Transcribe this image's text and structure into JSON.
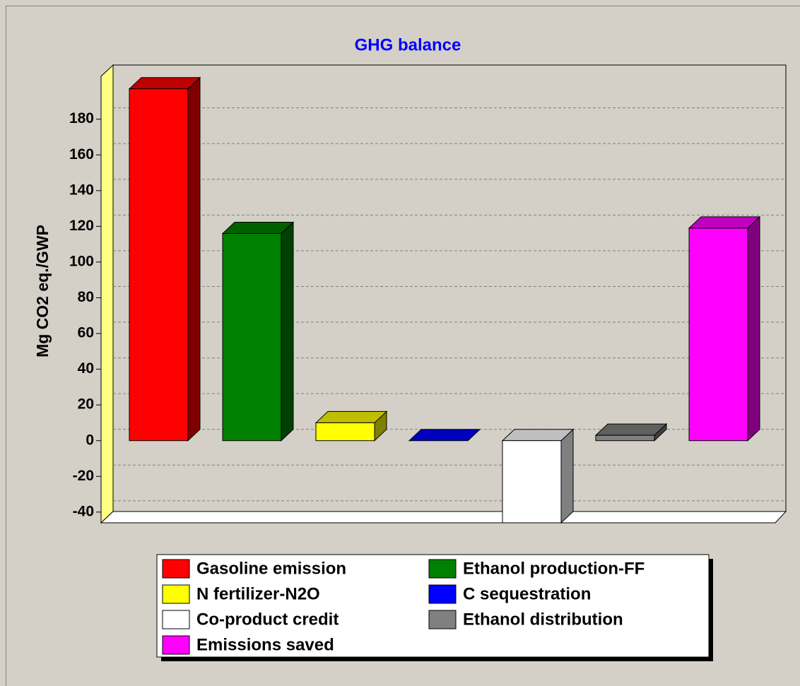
{
  "chart_data": {
    "type": "bar3d",
    "title": "GHG balance",
    "ylabel": "Mg CO2 eq./GWP",
    "categories": [
      "Gasoline emission",
      "Ethanol production-FF",
      "N fertilizer-N2O",
      "C sequestration",
      "Co-product credit",
      "Ethanol distribution",
      "Emissions saved"
    ],
    "values": [
      197,
      116,
      10,
      0,
      -55,
      3,
      119
    ],
    "colors": [
      "#ff0000",
      "#008000",
      "#ffff00",
      "#0000ff",
      "#ffffff",
      "#808080",
      "#ff00ff"
    ],
    "ylim": [
      -46,
      204
    ],
    "yticks": [
      -40,
      -20,
      0,
      20,
      40,
      60,
      80,
      100,
      120,
      140,
      160,
      180
    ],
    "grid": true
  }
}
